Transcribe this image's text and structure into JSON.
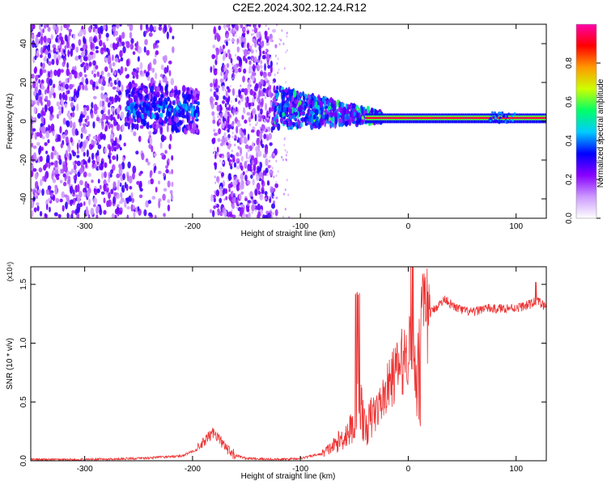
{
  "title": "C2E2.2024.302.12.24.R12",
  "chart_data": [
    {
      "type": "heatmap",
      "xlabel": "Height of straight line (km)",
      "ylabel": "Frequency (Hz)",
      "xlim": [
        -350,
        128
      ],
      "ylim": [
        -50,
        50
      ],
      "xticks": [
        -300,
        -200,
        -100,
        0,
        100
      ],
      "yticks": [
        -40,
        -20,
        0,
        20,
        40
      ],
      "colorbar": {
        "label": "Normalized spectral amplitude",
        "range": [
          0,
          1
        ],
        "ticks": [
          "0.0",
          "0.2",
          "0.4",
          "0.6",
          "0.8"
        ],
        "colors": [
          "#ffffff",
          "#cc99ff",
          "#8800ff",
          "#0000ff",
          "#00ccff",
          "#00ff66",
          "#ccff00",
          "#ff9900",
          "#ff0000",
          "#ff00aa"
        ]
      },
      "features": [
        {
          "region": [
            -350,
            -125
          ],
          "description_value": "scattered low-amplitude noise across all frequencies"
        },
        {
          "band_x": [
            -260,
            -195
          ],
          "center_hz": 7,
          "peak_amplitude": 0.3
        },
        {
          "band_x": [
            -125,
            128
          ],
          "center_hz": 2,
          "peak_amplitude": 0.95
        }
      ],
      "gap_x": [
        -218,
        -183
      ]
    },
    {
      "type": "line",
      "xlabel": "Height of straight line (km)",
      "ylabel": "SNR (10 * v/v)",
      "exponent_label": "(x10⁴)",
      "xlim": [
        -350,
        128
      ],
      "ylim": [
        0,
        1.65
      ],
      "xticks": [
        -300,
        -200,
        -100,
        0,
        100
      ],
      "yticks": [
        "0.0",
        "0.5",
        "1.0",
        "1.5"
      ],
      "color": "#ee3333",
      "x": [
        -350,
        -300,
        -250,
        -210,
        -195,
        -185,
        -180,
        -175,
        -165,
        -150,
        -120,
        -100,
        -80,
        -70,
        -60,
        -50,
        -45,
        -40,
        -35,
        -25,
        -15,
        -5,
        0,
        5,
        8,
        10,
        15,
        25,
        35,
        40,
        50,
        60,
        70,
        80,
        90,
        100,
        110,
        120,
        128
      ],
      "y": [
        0.01,
        0.01,
        0.02,
        0.04,
        0.1,
        0.2,
        0.25,
        0.18,
        0.06,
        0.02,
        0.01,
        0.02,
        0.06,
        0.12,
        0.2,
        0.3,
        0.55,
        0.25,
        0.35,
        0.5,
        0.7,
        0.85,
        0.95,
        1.05,
        0.55,
        1.2,
        1.2,
        1.3,
        1.38,
        1.32,
        1.28,
        1.26,
        1.3,
        1.29,
        1.3,
        1.3,
        1.32,
        1.36,
        1.3
      ]
    }
  ]
}
